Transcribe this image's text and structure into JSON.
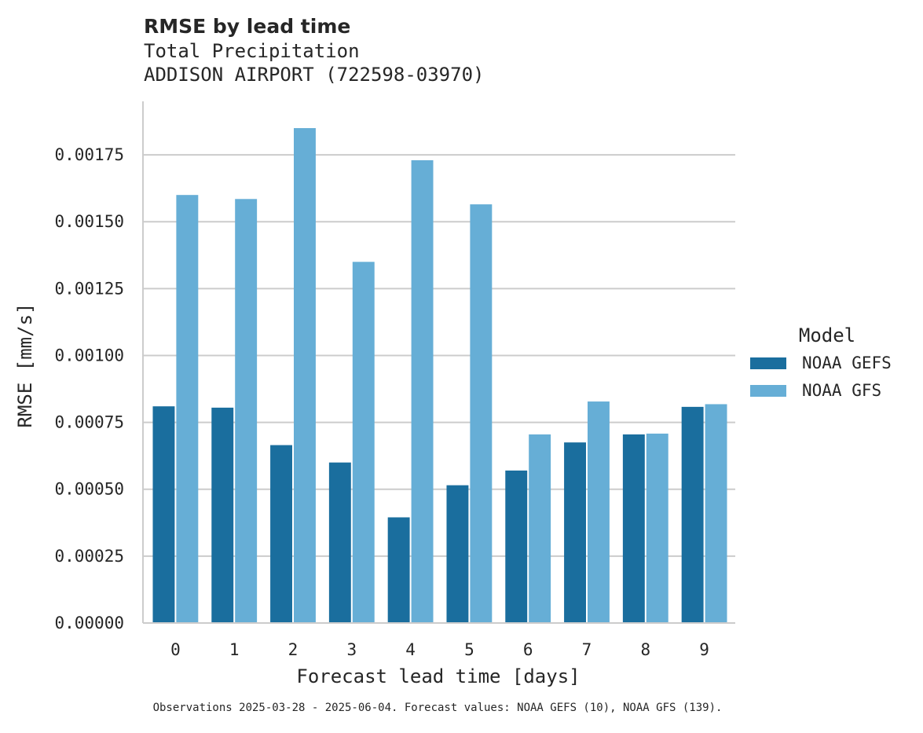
{
  "chart_data": {
    "type": "bar",
    "title": "RMSE by lead time",
    "subtitle_lines": [
      "Total Precipitation",
      "ADDISON AIRPORT (722598-03970)"
    ],
    "xlabel": "Forecast lead time [days]",
    "ylabel": "RMSE [mm/s]",
    "categories": [
      "0",
      "1",
      "2",
      "3",
      "4",
      "5",
      "6",
      "7",
      "8",
      "9"
    ],
    "ylim": [
      0,
      0.00195
    ],
    "yticks": [
      0.0,
      0.00025,
      0.0005,
      0.00075,
      0.001,
      0.00125,
      0.0015,
      0.00175
    ],
    "ytick_labels": [
      "0.00000",
      "0.00025",
      "0.00050",
      "0.00075",
      "0.00100",
      "0.00125",
      "0.00150",
      "0.00175"
    ],
    "grid": "horizontal",
    "legend": {
      "title": "Model",
      "placement": "right"
    },
    "series": [
      {
        "name": "NOAA GEFS",
        "color": "#1a6e9e",
        "values": [
          0.00081,
          0.000805,
          0.000665,
          0.0006,
          0.000395,
          0.000515,
          0.00057,
          0.000675,
          0.000705,
          0.000808
        ]
      },
      {
        "name": "NOAA GFS",
        "color": "#66aed6",
        "values": [
          0.0016,
          0.001585,
          0.00185,
          0.00135,
          0.00173,
          0.001565,
          0.000705,
          0.000828,
          0.000708,
          0.000818
        ]
      }
    ],
    "footnote": "Observations 2025-03-28 - 2025-06-04. Forecast values: NOAA GEFS (10), NOAA GFS (139)."
  }
}
